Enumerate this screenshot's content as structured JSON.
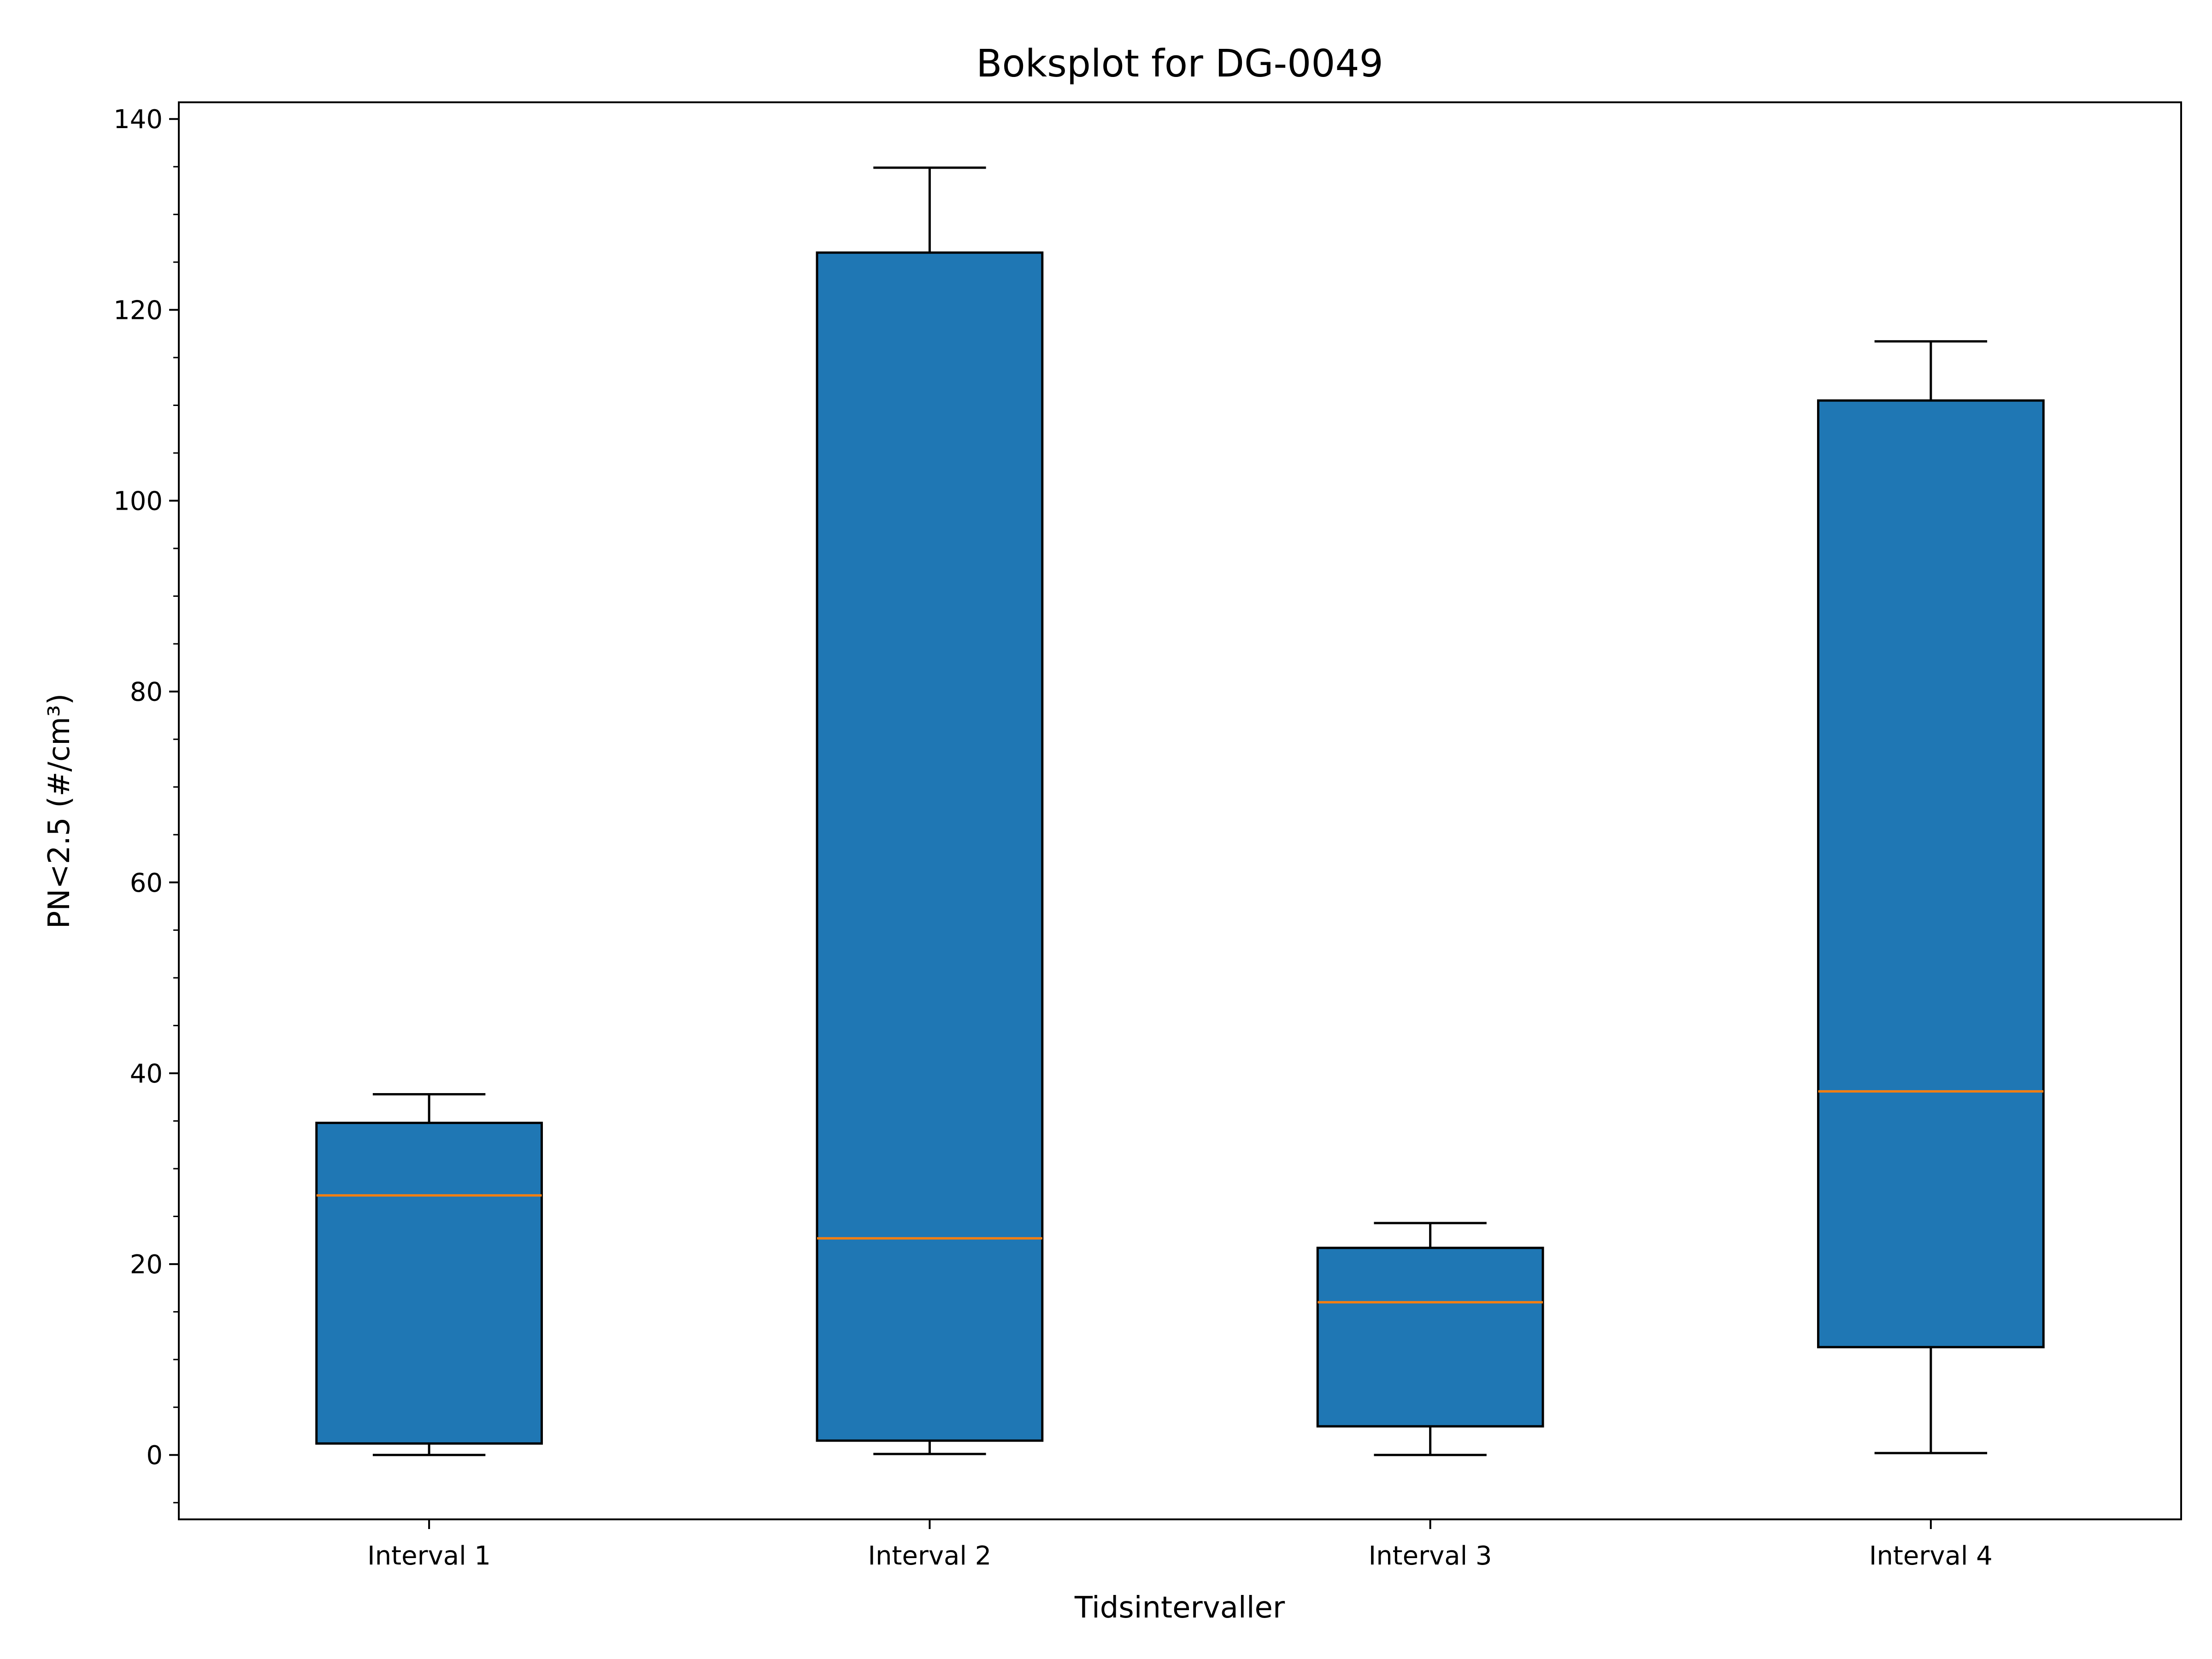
{
  "chart_data": {
    "type": "boxplot",
    "title": "Boksplot for DG-0049",
    "xlabel": "Tidsintervaller",
    "ylabel": "PN<2.5 (#/cm³)",
    "ylim": [
      -6.75,
      141.75
    ],
    "yticks": [
      0,
      20,
      40,
      60,
      80,
      100,
      120,
      140
    ],
    "yminor_step": 5,
    "categories": [
      "Interval 1",
      "Interval 2",
      "Interval 3",
      "Interval 4"
    ],
    "boxes": [
      {
        "category": "Interval 1",
        "whisker_low": 0.0,
        "q1": 1.2,
        "median": 27.2,
        "q3": 34.8,
        "whisker_high": 37.8
      },
      {
        "category": "Interval 2",
        "whisker_low": 0.1,
        "q1": 1.5,
        "median": 22.7,
        "q3": 126.0,
        "whisker_high": 134.9
      },
      {
        "category": "Interval 3",
        "whisker_low": 0.0,
        "q1": 3.0,
        "median": 16.0,
        "q3": 21.7,
        "whisker_high": 24.3
      },
      {
        "category": "Interval 4",
        "whisker_low": 0.2,
        "q1": 11.3,
        "median": 38.1,
        "q3": 110.5,
        "whisker_high": 116.7
      }
    ],
    "colors": {
      "box_fill": "#1f77b4",
      "box_edge": "#000000",
      "median": "#ff7f0e",
      "whisker": "#000000"
    },
    "grid": false,
    "legend": false
  }
}
